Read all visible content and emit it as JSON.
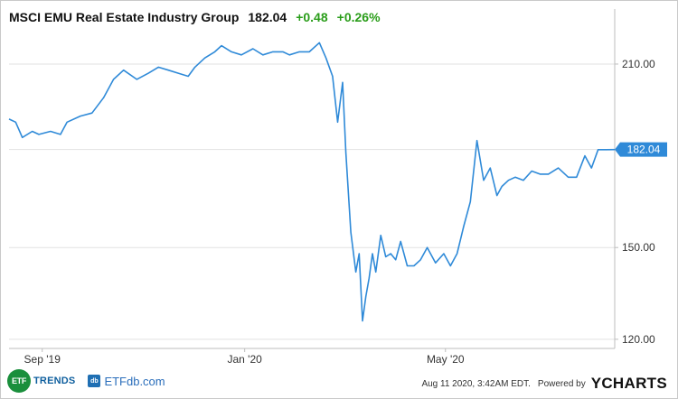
{
  "header": {
    "name": "MSCI EMU Real Estate Industry Group",
    "price": "182.04",
    "change": "+0.48",
    "change_pct": "+0.26%"
  },
  "colors": {
    "line": "#2f8ad8",
    "grid": "#e2e2e2",
    "badge": "#2f8ad8",
    "positive": "#2a9d1a"
  },
  "chart_data": {
    "type": "line",
    "title": "MSCI EMU Real Estate Industry Group",
    "xlabel": "",
    "ylabel": "",
    "ylim": [
      117,
      228
    ],
    "x_range": [
      "2019-08-12",
      "2020-08-11"
    ],
    "yticks": [
      {
        "value": 120,
        "label": "120.00"
      },
      {
        "value": 150,
        "label": "150.00"
      },
      {
        "value": 210,
        "label": "210.00"
      }
    ],
    "xticks": [
      {
        "date": "2019-09-01",
        "label": "Sep '19"
      },
      {
        "date": "2020-01-01",
        "label": "Jan '20"
      },
      {
        "date": "2020-05-01",
        "label": "May '20"
      }
    ],
    "last_value_label": "182.04",
    "series": [
      {
        "x": [
          "2019-08-12",
          "2019-08-16",
          "2019-08-20",
          "2019-08-26",
          "2019-08-30",
          "2019-09-06",
          "2019-09-12",
          "2019-09-16",
          "2019-09-24",
          "2019-10-01",
          "2019-10-08",
          "2019-10-14",
          "2019-10-20",
          "2019-10-28",
          "2019-11-04",
          "2019-11-10",
          "2019-11-16",
          "2019-11-22",
          "2019-11-28",
          "2019-12-02",
          "2019-12-08",
          "2019-12-14",
          "2019-12-18",
          "2019-12-24",
          "2019-12-30",
          "2020-01-06",
          "2020-01-12",
          "2020-01-18",
          "2020-01-24",
          "2020-01-28",
          "2020-02-03",
          "2020-02-09",
          "2020-02-15",
          "2020-02-19",
          "2020-02-23",
          "2020-02-26",
          "2020-02-29",
          "2020-03-02",
          "2020-03-05",
          "2020-03-08",
          "2020-03-10",
          "2020-03-12",
          "2020-03-14",
          "2020-03-16",
          "2020-03-18",
          "2020-03-20",
          "2020-03-23",
          "2020-03-26",
          "2020-03-29",
          "2020-04-01",
          "2020-04-04",
          "2020-04-08",
          "2020-04-12",
          "2020-04-16",
          "2020-04-20",
          "2020-04-25",
          "2020-04-30",
          "2020-05-04",
          "2020-05-08",
          "2020-05-12",
          "2020-05-16",
          "2020-05-20",
          "2020-05-24",
          "2020-05-28",
          "2020-06-01",
          "2020-06-04",
          "2020-06-08",
          "2020-06-12",
          "2020-06-17",
          "2020-06-22",
          "2020-06-27",
          "2020-07-02",
          "2020-07-08",
          "2020-07-14",
          "2020-07-19",
          "2020-07-24",
          "2020-07-28",
          "2020-08-01",
          "2020-08-06",
          "2020-08-11"
        ],
        "values": [
          192,
          191,
          186,
          188,
          187,
          188,
          187,
          191,
          193,
          194,
          199,
          205,
          208,
          205,
          207,
          209,
          208,
          207,
          206,
          209,
          212,
          214,
          216,
          214,
          213,
          215,
          213,
          214,
          214,
          213,
          214,
          214,
          217,
          212,
          206,
          191,
          204,
          181,
          155,
          142,
          148,
          126,
          134,
          140,
          148,
          142,
          154,
          147,
          148,
          146,
          152,
          144,
          144,
          146,
          150,
          145,
          148,
          144,
          148,
          157,
          165,
          185,
          172,
          176,
          167,
          170,
          172,
          173,
          172,
          175,
          174,
          174,
          176,
          173,
          173,
          180,
          176,
          182,
          182,
          182.04
        ]
      }
    ]
  },
  "footer": {
    "etf_circle": "ETF",
    "etf_trends": "TRENDS",
    "etfdb_box": "db",
    "etfdb": "ETFdb.com",
    "timestamp": "Aug 11 2020, 3:42AM EDT.",
    "powered": "Powered by",
    "brand": "YCHARTS"
  }
}
